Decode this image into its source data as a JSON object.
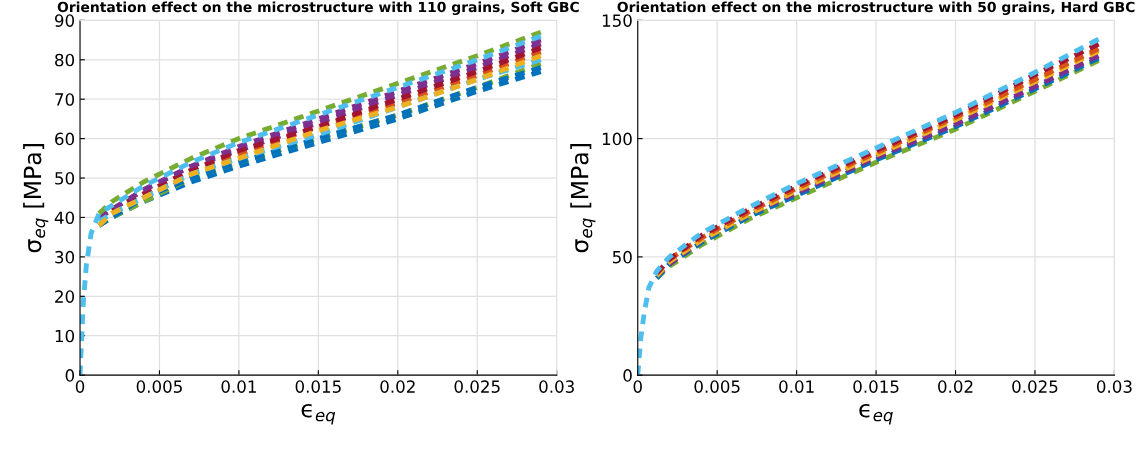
{
  "chart_data": [
    {
      "type": "line",
      "title": "Orientation effect on the microstructure with 110 grains, Soft GBC",
      "xlabel": "ϵ$_{eq}$",
      "ylabel": "σ$_{eq}$ [MPa]",
      "xlim": [
        0,
        0.03
      ],
      "ylim": [
        0,
        90
      ],
      "xticks": [
        0,
        0.005,
        0.01,
        0.015,
        0.02,
        0.025,
        0.03
      ],
      "yticks": [
        0,
        10,
        20,
        30,
        40,
        50,
        60,
        70,
        80,
        90
      ],
      "grid": true,
      "line_style": "dashed",
      "marker": "none",
      "legend": false,
      "x": [
        0,
        0.0001,
        0.0002,
        0.0004,
        0.0007,
        0.0012,
        0.002,
        0.004,
        0.007,
        0.01,
        0.015,
        0.02,
        0.025,
        0.029
      ],
      "series": [
        {
          "color": "#0072bd",
          "values": [
            null,
            null,
            null,
            null,
            null,
            38,
            40,
            44,
            49,
            53,
            59,
            65,
            72,
            77
          ]
        },
        {
          "color": "#d95319",
          "values": [
            null,
            null,
            null,
            null,
            null,
            null,
            42,
            46,
            52,
            56,
            63,
            69,
            76,
            82
          ]
        },
        {
          "color": "#7e2f8e",
          "values": [
            null,
            null,
            null,
            null,
            null,
            40,
            42,
            47,
            53,
            57,
            64,
            71,
            78,
            84
          ]
        },
        {
          "color": "#77ac30",
          "values": [
            null,
            null,
            null,
            null,
            null,
            38,
            40,
            44,
            50,
            54,
            60,
            66,
            73,
            79
          ]
        },
        {
          "color": "#a2142f",
          "values": [
            null,
            null,
            null,
            null,
            null,
            null,
            42,
            46,
            52,
            57,
            63,
            70,
            77,
            83
          ]
        },
        {
          "color": "#0072bd",
          "values": [
            null,
            null,
            null,
            null,
            null,
            38,
            40,
            45,
            50,
            54,
            60,
            66,
            73,
            78
          ]
        },
        {
          "color": "#7e2f8e",
          "values": [
            null,
            null,
            null,
            null,
            null,
            40,
            42,
            47,
            53,
            58,
            65,
            72,
            79,
            85
          ]
        },
        {
          "color": "#77ac30",
          "values": [
            null,
            null,
            null,
            null,
            null,
            41,
            44,
            49,
            55,
            60,
            67,
            74,
            81,
            87
          ]
        },
        {
          "color": "#4dbeee",
          "values": [
            null,
            null,
            null,
            null,
            null,
            39,
            41,
            45,
            51,
            55,
            61,
            68,
            75,
            80
          ]
        },
        {
          "color": "#edb120",
          "values": [
            null,
            null,
            null,
            null,
            null,
            38,
            41,
            45,
            51,
            55,
            62,
            68,
            75,
            81
          ]
        },
        {
          "color": "#4dbeee",
          "values": [
            0,
            9,
            18,
            28,
            36,
            41,
            43,
            48,
            54,
            59,
            66,
            73,
            80,
            86
          ]
        }
      ]
    },
    {
      "type": "line",
      "title": "Orientation effect on the microstructure with 50 grains, Hard GBC",
      "xlabel": "ϵ$_{eq}$",
      "ylabel": "σ$_{eq}$ [MPa]",
      "xlim": [
        0,
        0.03
      ],
      "ylim": [
        0,
        150
      ],
      "xticks": [
        0,
        0.005,
        0.01,
        0.015,
        0.02,
        0.025,
        0.03
      ],
      "yticks": [
        0,
        50,
        100,
        150
      ],
      "grid": true,
      "line_style": "dashed",
      "marker": "none",
      "legend": false,
      "x": [
        0,
        0.0001,
        0.0002,
        0.0004,
        0.0007,
        0.0012,
        0.002,
        0.004,
        0.007,
        0.01,
        0.015,
        0.02,
        0.025,
        0.029
      ],
      "series": [
        {
          "color": "#77ac30",
          "values": [
            null,
            null,
            null,
            null,
            null,
            41,
            46,
            55,
            66,
            75,
            90,
            104,
            120,
            133
          ]
        },
        {
          "color": "#0072bd",
          "values": [
            null,
            null,
            null,
            null,
            null,
            41,
            47,
            56,
            67,
            76,
            91,
            105,
            121,
            134
          ]
        },
        {
          "color": "#7e2f8e",
          "values": [
            null,
            null,
            null,
            null,
            null,
            42,
            47,
            57,
            68,
            77,
            92,
            106,
            122,
            135
          ]
        },
        {
          "color": "#edb120",
          "values": [
            null,
            null,
            null,
            null,
            null,
            42,
            48,
            57,
            68,
            78,
            93,
            108,
            124,
            137
          ]
        },
        {
          "color": "#d95319",
          "values": [
            null,
            null,
            null,
            null,
            null,
            null,
            49,
            58,
            69,
            79,
            94,
            109,
            125,
            138
          ]
        },
        {
          "color": "#a2142f",
          "values": [
            null,
            null,
            null,
            null,
            null,
            43,
            49,
            59,
            70,
            80,
            95,
            110,
            127,
            140
          ]
        },
        {
          "color": "#4dbeee",
          "values": [
            0,
            8,
            16,
            26,
            37,
            44,
            50,
            60,
            71,
            81,
            96,
            111,
            128,
            142
          ]
        }
      ]
    }
  ]
}
